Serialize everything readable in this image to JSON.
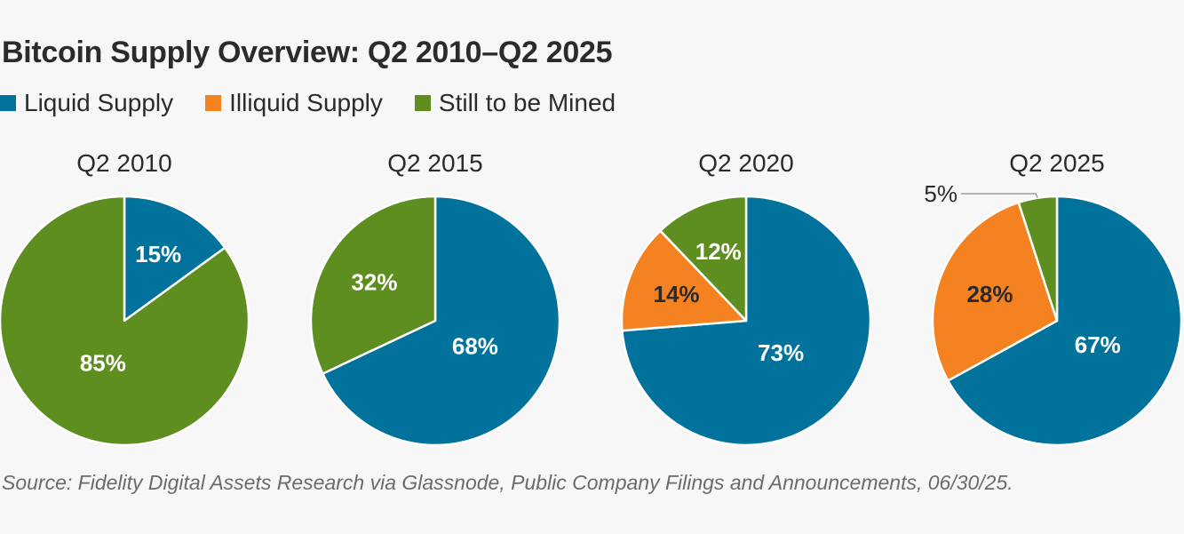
{
  "title": "Bitcoin Supply Overview: Q2 2010–Q2 2025",
  "source": "Source: Fidelity Digital Assets Research via Glassnode, Public Company Filings and Announcements, 06/30/25.",
  "chart_data": {
    "type": "pie",
    "legend_position": "top-left",
    "series_names": [
      "Liquid Supply",
      "Illiquid Supply",
      "Still to be Mined"
    ],
    "colors": {
      "Liquid Supply": "#00729c",
      "Illiquid Supply": "#f58220",
      "Still to be Mined": "#5e8e1f"
    },
    "pies": [
      {
        "label": "Q2 2010",
        "slices": [
          {
            "series": "Liquid Supply",
            "value": 15,
            "label": "15%"
          },
          {
            "series": "Illiquid Supply",
            "value": 0,
            "label": ""
          },
          {
            "series": "Still to be Mined",
            "value": 85,
            "label": "85%"
          }
        ]
      },
      {
        "label": "Q2 2015",
        "slices": [
          {
            "series": "Liquid Supply",
            "value": 68,
            "label": "68%"
          },
          {
            "series": "Illiquid Supply",
            "value": 0,
            "label": ""
          },
          {
            "series": "Still to be Mined",
            "value": 32,
            "label": "32%"
          }
        ]
      },
      {
        "label": "Q2 2020",
        "slices": [
          {
            "series": "Liquid Supply",
            "value": 73,
            "label": "73%"
          },
          {
            "series": "Illiquid Supply",
            "value": 14,
            "label": "14%"
          },
          {
            "series": "Still to be Mined",
            "value": 12,
            "label": "12%"
          }
        ]
      },
      {
        "label": "Q2 2025",
        "slices": [
          {
            "series": "Liquid Supply",
            "value": 67,
            "label": "67%"
          },
          {
            "series": "Illiquid Supply",
            "value": 28,
            "label": "28%"
          },
          {
            "series": "Still to be Mined",
            "value": 5,
            "label": "5%",
            "callout": true
          }
        ]
      }
    ]
  }
}
